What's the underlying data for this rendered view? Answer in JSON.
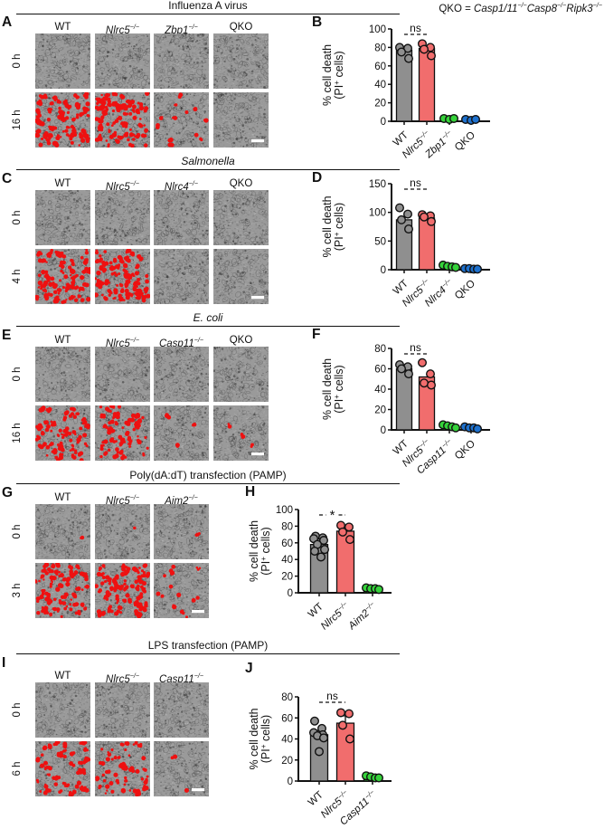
{
  "header": {
    "qko_definition": [
      {
        "t": "QKO = "
      },
      {
        "t": "Casp1/11",
        "i": 1
      },
      {
        "t": "−/−",
        "i": 1,
        "s": 1
      },
      {
        "t": "Casp8",
        "i": 1
      },
      {
        "t": "−/−",
        "i": 1,
        "s": 1
      },
      {
        "t": "Ripk3",
        "i": 1
      },
      {
        "t": "−/−",
        "i": 1,
        "s": 1
      }
    ]
  },
  "micro": {
    "bg": "#9A9A9A",
    "red": "#EE1111",
    "scalebar_color": "#ffffff"
  },
  "sections": [
    {
      "panel_letter": "A",
      "title": [
        {
          "t": "Influenza A virus"
        }
      ],
      "grid": {
        "columns": [
          [
            {
              "t": "WT"
            }
          ],
          [
            {
              "t": "Nlrc5",
              "i": 1
            },
            {
              "t": "−/−",
              "i": 1,
              "s": 1
            }
          ],
          [
            {
              "t": "Zbp1",
              "i": 1
            },
            {
              "t": "−/−",
              "i": 1,
              "s": 1
            }
          ],
          [
            {
              "t": "QKO"
            }
          ]
        ],
        "rows": [
          {
            "label": "0 h",
            "red": [
              0,
              0,
              0,
              0
            ]
          },
          {
            "label": "16 h",
            "red": [
              85,
              95,
              12,
              0
            ],
            "scalebar": true
          }
        ]
      }
    },
    {
      "panel_letter": "C",
      "title": [
        {
          "t": "Salmonella",
          "i": 1
        }
      ],
      "grid": {
        "columns": [
          [
            {
              "t": "WT"
            }
          ],
          [
            {
              "t": "Nlrc5",
              "i": 1
            },
            {
              "t": "−/−",
              "i": 1,
              "s": 1
            }
          ],
          [
            {
              "t": "Nlrc4",
              "i": 1
            },
            {
              "t": "−/−",
              "i": 1,
              "s": 1
            }
          ],
          [
            {
              "t": "QKO"
            }
          ]
        ],
        "rows": [
          {
            "label": "0 h",
            "red": [
              0,
              0,
              0,
              0
            ]
          },
          {
            "label": "4 h",
            "red": [
              90,
              100,
              0,
              0
            ],
            "scalebar": true
          }
        ]
      }
    },
    {
      "panel_letter": "E",
      "title": [
        {
          "t": "E. coli",
          "i": 1
        }
      ],
      "grid": {
        "columns": [
          [
            {
              "t": "WT"
            }
          ],
          [
            {
              "t": "Nlrc5",
              "i": 1
            },
            {
              "t": "−/−",
              "i": 1,
              "s": 1
            }
          ],
          [
            {
              "t": "Casp11",
              "i": 1
            },
            {
              "t": "−/−",
              "i": 1,
              "s": 1
            }
          ],
          [
            {
              "t": "QKO"
            }
          ]
        ],
        "rows": [
          {
            "label": "0 h",
            "red": [
              0,
              0,
              0,
              0
            ]
          },
          {
            "label": "16 h",
            "red": [
              70,
              60,
              3,
              3
            ],
            "scalebar": true
          }
        ]
      }
    },
    {
      "panel_letter": "G",
      "title": [
        {
          "t": "Poly(dA:dT) transfection (PAMP)"
        }
      ],
      "grid": {
        "columns": [
          [
            {
              "t": "WT"
            }
          ],
          [
            {
              "t": "Nlrc5",
              "i": 1
            },
            {
              "t": "−/−",
              "i": 1,
              "s": 1
            }
          ],
          [
            {
              "t": "Aim2",
              "i": 1
            },
            {
              "t": "−/−",
              "i": 1,
              "s": 1
            }
          ]
        ],
        "rows": [
          {
            "label": "0 h",
            "red": [
              1,
              1,
              1
            ]
          },
          {
            "label": "3 h",
            "red": [
              75,
              90,
              14
            ],
            "scalebar": true
          }
        ]
      }
    },
    {
      "panel_letter": "I",
      "title": [
        {
          "t": "LPS transfection (PAMP)"
        }
      ],
      "grid": {
        "columns": [
          [
            {
              "t": "WT"
            }
          ],
          [
            {
              "t": "Nlrc5",
              "i": 1
            },
            {
              "t": "−/−",
              "i": 1,
              "s": 1
            }
          ],
          [
            {
              "t": "Casp11",
              "i": 1
            },
            {
              "t": "−/−",
              "i": 1,
              "s": 1
            }
          ]
        ],
        "rows": [
          {
            "label": "0 h",
            "red": [
              0,
              0,
              0
            ]
          },
          {
            "label": "6 h",
            "red": [
              55,
              50,
              2
            ],
            "scalebar": true
          }
        ]
      }
    }
  ],
  "chart_common": {
    "ylabel_line1": "% cell death",
    "ylabel_line2_parts": [
      {
        "t": "(PI"
      },
      {
        "t": "+",
        "s": 1
      },
      {
        "t": " cells)"
      }
    ]
  },
  "chart_data": [
    {
      "panel": "B",
      "type": "bar+scatter",
      "stimulus": "Influenza A virus",
      "ylim": [
        0,
        100
      ],
      "ytick_step": 20,
      "categories": [
        [
          {
            "t": "WT"
          }
        ],
        [
          {
            "t": "Nlrc5",
            "i": 1
          },
          {
            "t": "−/−",
            "i": 1,
            "s": 1
          }
        ],
        [
          {
            "t": "Zbp1",
            "i": 1
          },
          {
            "t": "−/−",
            "i": 1,
            "s": 1
          }
        ],
        [
          {
            "t": "QKO"
          }
        ]
      ],
      "bars": [
        77,
        79,
        2,
        1.5
      ],
      "errors": [
        0,
        0,
        0,
        0
      ],
      "colors": [
        "#8F8F8F",
        "#F16D6D",
        "#35D23A",
        "#1E71CE"
      ],
      "dots": [
        [
          80,
          79,
          75,
          68
        ],
        [
          84,
          80,
          78,
          71
        ],
        [
          3,
          2,
          3
        ],
        [
          2,
          1,
          2
        ]
      ],
      "sig": {
        "label": "ns",
        "from": 0,
        "to": 1
      }
    },
    {
      "panel": "D",
      "type": "bar+scatter",
      "stimulus": "Salmonella",
      "ylim": [
        0,
        150
      ],
      "ytick_step": 50,
      "categories": [
        [
          {
            "t": "WT"
          }
        ],
        [
          {
            "t": "Nlrc5",
            "i": 1
          },
          {
            "t": "−/−",
            "i": 1,
            "s": 1
          }
        ],
        [
          {
            "t": "Nlrc4",
            "i": 1
          },
          {
            "t": "−/−",
            "i": 1,
            "s": 1
          }
        ],
        [
          {
            "t": "QKO"
          }
        ]
      ],
      "bars": [
        87,
        90,
        5,
        2
      ],
      "errors": [
        0,
        0,
        0,
        0
      ],
      "colors": [
        "#8F8F8F",
        "#F16D6D",
        "#35D23A",
        "#1E71CE"
      ],
      "dots": [
        [
          108,
          97,
          87,
          71
        ],
        [
          96,
          94,
          92,
          84
        ],
        [
          8,
          6,
          5,
          4
        ],
        [
          2,
          2,
          1,
          1
        ]
      ],
      "sig": {
        "label": "ns",
        "from": 0,
        "to": 1
      }
    },
    {
      "panel": "F",
      "type": "bar+scatter",
      "stimulus": "E. coli",
      "ylim": [
        0,
        80
      ],
      "ytick_step": 20,
      "categories": [
        [
          {
            "t": "WT"
          }
        ],
        [
          {
            "t": "Nlrc5",
            "i": 1
          },
          {
            "t": "−/−",
            "i": 1,
            "s": 1
          }
        ],
        [
          {
            "t": "Casp11",
            "i": 1
          },
          {
            "t": "−/−",
            "i": 1,
            "s": 1
          }
        ],
        [
          {
            "t": "QKO"
          }
        ]
      ],
      "bars": [
        60,
        52,
        3,
        2
      ],
      "errors": [
        0,
        0,
        0,
        0
      ],
      "colors": [
        "#8F8F8F",
        "#F16D6D",
        "#35D23A",
        "#1E71CE"
      ],
      "dots": [
        [
          64,
          62,
          60,
          55
        ],
        [
          66,
          55,
          46,
          44
        ],
        [
          5,
          4,
          3,
          2
        ],
        [
          3,
          2,
          2,
          1
        ]
      ],
      "sig": {
        "label": "ns",
        "from": 0,
        "to": 1
      }
    },
    {
      "panel": "H",
      "type": "bar+scatter",
      "stimulus": "Poly(dA:dT) transfection (PAMP)",
      "ylim": [
        0,
        100
      ],
      "ytick_step": 20,
      "categories": [
        [
          {
            "t": "WT"
          }
        ],
        [
          {
            "t": "Nlrc5",
            "i": 1
          },
          {
            "t": "−/−",
            "i": 1,
            "s": 1
          }
        ],
        [
          {
            "t": "Aim2",
            "i": 1
          },
          {
            "t": "−/−",
            "i": 1,
            "s": 1
          }
        ]
      ],
      "bars": [
        58,
        74,
        4
      ],
      "errors": [
        0,
        6,
        0
      ],
      "colors": [
        "#8F8F8F",
        "#F16D6D",
        "#35D23A"
      ],
      "dots": [
        [
          68,
          66,
          65,
          63,
          58,
          52,
          50,
          43
        ],
        [
          81,
          79,
          73,
          64
        ],
        [
          6,
          5,
          5,
          4
        ]
      ],
      "sig": {
        "label": "*",
        "from": 0,
        "to": 1
      }
    },
    {
      "panel": "J",
      "type": "bar+scatter",
      "stimulus": "LPS transfection (PAMP)",
      "ylim": [
        0,
        80
      ],
      "ytick_step": 20,
      "categories": [
        [
          {
            "t": "WT"
          }
        ],
        [
          {
            "t": "Nlrc5",
            "i": 1
          },
          {
            "t": "−/−",
            "i": 1,
            "s": 1
          }
        ],
        [
          {
            "t": "Casp11",
            "i": 1
          },
          {
            "t": "−/−",
            "i": 1,
            "s": 1
          }
        ]
      ],
      "bars": [
        44,
        55,
        3
      ],
      "errors": [
        4,
        7,
        0
      ],
      "colors": [
        "#8F8F8F",
        "#F16D6D",
        "#35D23A"
      ],
      "dots": [
        [
          57,
          50,
          46,
          44,
          43,
          41,
          28
        ],
        [
          65,
          64,
          53,
          40
        ],
        [
          5,
          4,
          3,
          3
        ]
      ],
      "sig": {
        "label": "ns",
        "from": 0,
        "to": 1
      }
    }
  ]
}
